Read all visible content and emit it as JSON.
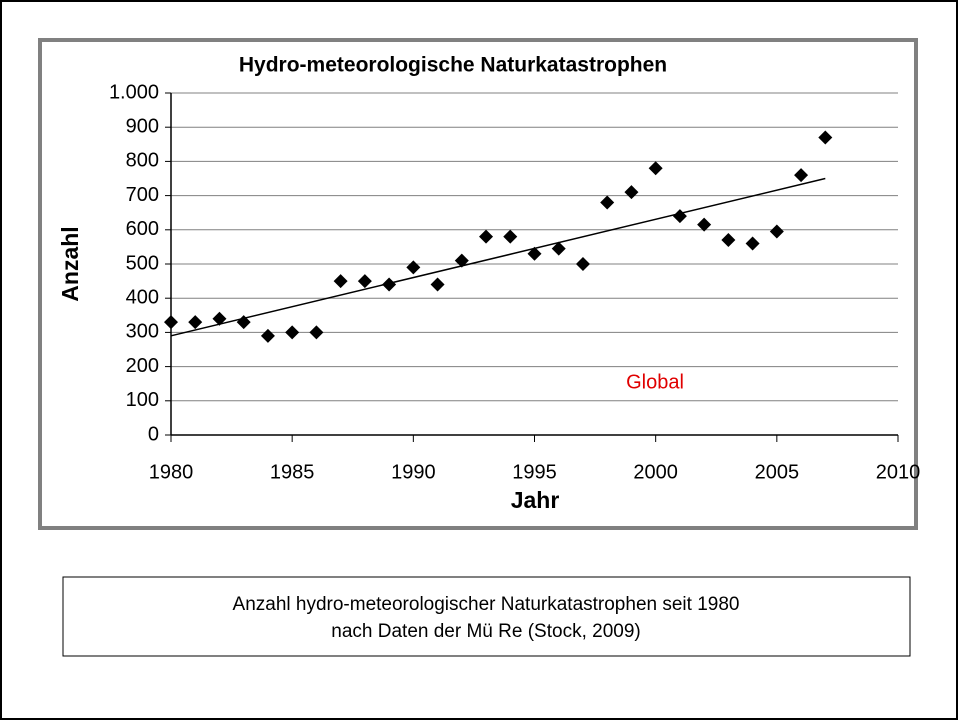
{
  "chart_data": {
    "type": "scatter",
    "title": "Hydro-meteorologische Naturkatastrophen",
    "x_label": "Jahr",
    "y_label": "Anzahl",
    "annotation": "Global",
    "x": [
      1980,
      1981,
      1982,
      1983,
      1984,
      1985,
      1986,
      1987,
      1988,
      1989,
      1990,
      1991,
      1992,
      1993,
      1994,
      1995,
      1996,
      1997,
      1998,
      1999,
      2000,
      2001,
      2002,
      2003,
      2004,
      2005,
      2006,
      2007
    ],
    "values": [
      330,
      330,
      340,
      330,
      290,
      300,
      300,
      450,
      450,
      440,
      490,
      440,
      510,
      580,
      580,
      530,
      545,
      500,
      680,
      710,
      780,
      640,
      615,
      570,
      560,
      595,
      760,
      870
    ],
    "color": "#000000",
    "trendline": {
      "x": [
        1980,
        2007
      ],
      "values": [
        290,
        750
      ]
    },
    "xlim": [
      1980,
      2010
    ],
    "xticks": [
      1980,
      1985,
      1990,
      1995,
      2000,
      2005,
      2010
    ],
    "ylim": [
      0,
      1000
    ],
    "yticks": [
      0,
      100,
      200,
      300,
      400,
      500,
      600,
      700,
      800,
      900,
      {
        "value": 1000,
        "label": "1.000"
      }
    ],
    "grid": true
  },
  "caption": [
    "Anzahl hydro-meteorologischer Naturkatastrophen seit 1980",
    "nach Daten der Mü Re (Stock, 2009)"
  ]
}
